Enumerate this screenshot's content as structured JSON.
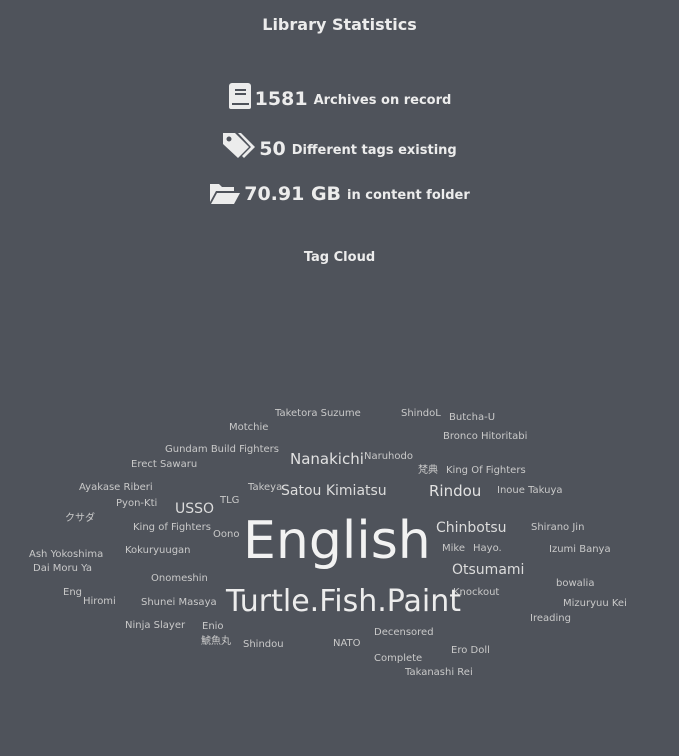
{
  "page": {
    "title": "Library Statistics"
  },
  "stats": {
    "archives": {
      "value": "1581",
      "label": "Archives on record",
      "icon": "book-icon"
    },
    "tags": {
      "value": "50",
      "label": "Different tags existing",
      "icon": "tags-icon"
    },
    "size": {
      "value": "70.91 GB",
      "label": "in content folder",
      "icon": "folder-open-icon"
    }
  },
  "tag_cloud": {
    "title": "Tag Cloud",
    "tags": [
      "Taketora Suzume",
      "ShindoL",
      "Butcha-U",
      "Motchie",
      "Bronco Hitoritabi",
      "Gundam Build Fighters",
      "Nanakichi",
      "Naruhodo",
      "Erect Sawaru",
      "梵典",
      "King Of Fighters",
      "Ayakase Riberi",
      "Takeya",
      "Satou Kimiatsu",
      "Rindou",
      "Inoue Takuya",
      "Pyon-Kti",
      "TLG",
      "USSO",
      "クサダ",
      "King of Fighters",
      "Chinbotsu",
      "Shirano Jin",
      "Oono",
      "English",
      "Ash Yokoshima",
      "Kokuryuugan",
      "Mike",
      "Hayo.",
      "Izumi Banya",
      "Dai Moru Ya",
      "Otsumami",
      "Onomeshin",
      "bowalia",
      "Eng",
      "Knockout",
      "Hiromi",
      "Shunei Masaya",
      "Turtle.Fish.Paint",
      "Mizuryuu Kei",
      "Ireading",
      "Ninja Slayer",
      "Enio",
      "Decensored",
      "鯱魚丸",
      "Shindou",
      "NATO",
      "Ero Doll",
      "Complete",
      "Takanashi Rei"
    ]
  }
}
